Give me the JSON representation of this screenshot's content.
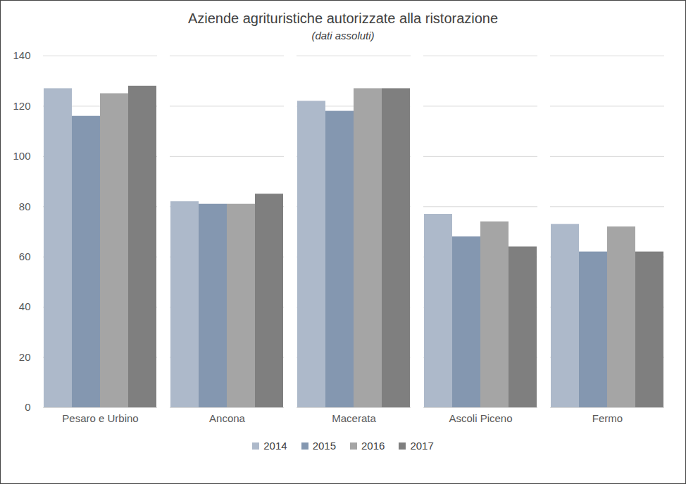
{
  "chart_data": {
    "type": "bar",
    "title": "Aziende agrituristiche autorizzate alla ristorazione",
    "subtitle": "(dati assoluti)",
    "categories": [
      "Pesaro e Urbino",
      "Ancona",
      "Macerata",
      "Ascoli Piceno",
      "Fermo"
    ],
    "series": [
      {
        "name": "2014",
        "color": "#adb9ca",
        "values": [
          127,
          82,
          122,
          77,
          73
        ]
      },
      {
        "name": "2015",
        "color": "#8497b0",
        "values": [
          116,
          81,
          118,
          68,
          62
        ]
      },
      {
        "name": "2016",
        "color": "#a5a5a5",
        "values": [
          125,
          81,
          127,
          74,
          72
        ]
      },
      {
        "name": "2017",
        "color": "#7f7f7f",
        "values": [
          128,
          85,
          127,
          64,
          62
        ]
      }
    ],
    "ylim": [
      0,
      140
    ],
    "yticks": [
      0,
      20,
      40,
      60,
      80,
      100,
      120,
      140
    ],
    "grid": true,
    "legend": "bottom"
  }
}
